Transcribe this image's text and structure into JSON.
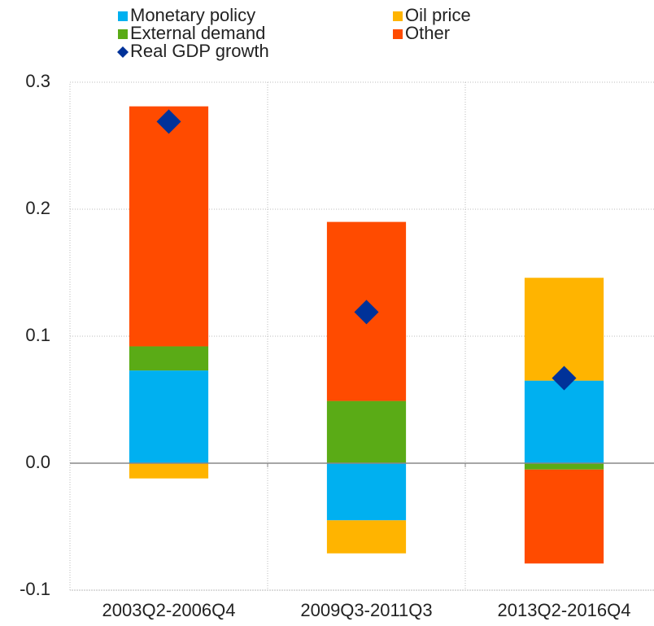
{
  "chart_data": {
    "type": "stacked-bar",
    "categories": [
      "2003Q2-2006Q4",
      "2009Q3-2011Q3",
      "2013Q2-2016Q4"
    ],
    "series": [
      {
        "name": "Monetary policy",
        "color": "#00b0f0",
        "values": [
          0.073,
          -0.045,
          0.065
        ]
      },
      {
        "name": "Oil price",
        "color": "#ffb400",
        "values": [
          -0.012,
          -0.026,
          0.081
        ]
      },
      {
        "name": "External demand",
        "color": "#5aab16",
        "values": [
          0.019,
          0.049,
          -0.005
        ]
      },
      {
        "name": "Other",
        "color": "#ff4b00",
        "values": [
          0.189,
          0.141,
          -0.074
        ]
      }
    ],
    "markers": {
      "name": "Real GDP growth",
      "color": "#003299",
      "values": [
        0.269,
        0.119,
        0.067
      ]
    },
    "ylim": [
      -0.1,
      0.3
    ],
    "yticks": [
      -0.1,
      {
        "value": 0,
        "label": "0.0"
      },
      0.1,
      0.2,
      0.3
    ],
    "grid": true
  }
}
